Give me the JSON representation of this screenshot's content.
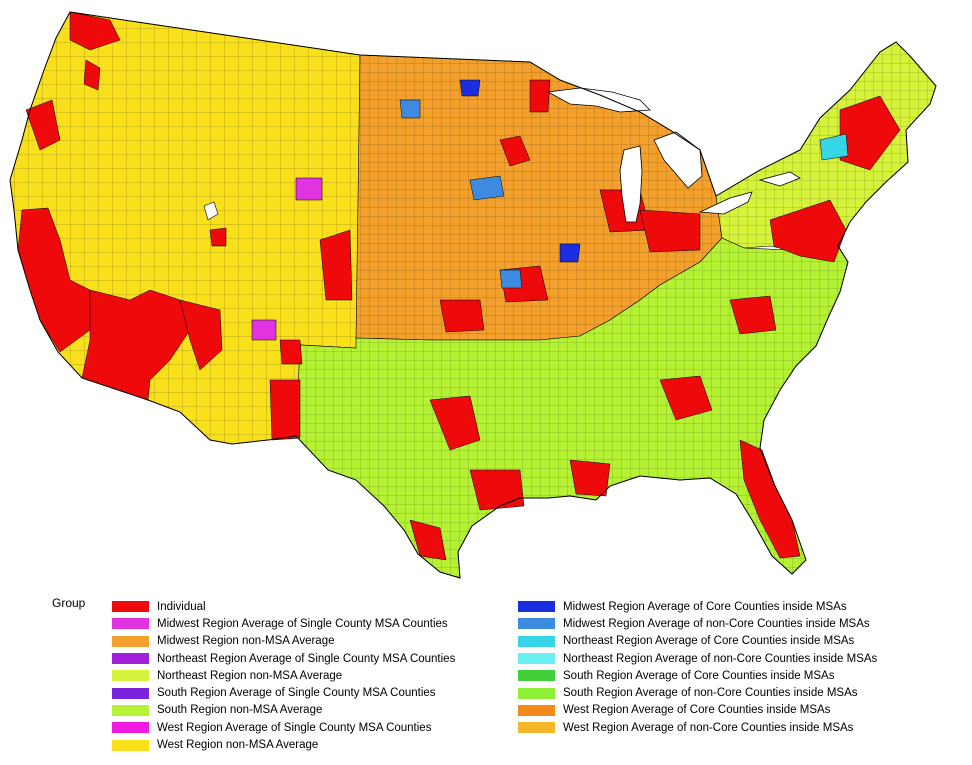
{
  "map": {
    "regions": {
      "west": "#f9e01b",
      "midwest": "#f4a02c",
      "south": "#b5f234",
      "northeast": "#d7f23a"
    },
    "highlight_colors": {
      "individual": "#ee0a0a",
      "midwest_core": "#1a2ee0",
      "midwest_noncore": "#3d8be0",
      "northeast_core": "#36d6e6",
      "south_core": "#42d03a",
      "msa_single": "#e233e2"
    }
  },
  "legend": {
    "title": "Group",
    "left": [
      {
        "label": "Individual",
        "color": "#ee0a0a"
      },
      {
        "label": "Midwest Region Average of Single County MSA Counties",
        "color": "#e233e2"
      },
      {
        "label": "Midwest Region non-MSA Average",
        "color": "#f4a02c"
      },
      {
        "label": "Northeast Region Average of Single County MSA Counties",
        "color": "#a020d8"
      },
      {
        "label": "Northeast Region non-MSA Average",
        "color": "#d7f23a"
      },
      {
        "label": "South Region Average of Single County MSA Counties",
        "color": "#7a22dc"
      },
      {
        "label": "South Region non-MSA Average",
        "color": "#b5f234"
      },
      {
        "label": "West Region Average of Single County MSA Counties",
        "color": "#f01ae0"
      },
      {
        "label": "West Region non-MSA Average",
        "color": "#f9e01b"
      }
    ],
    "right": [
      {
        "label": "Midwest Region Average of Core Counties inside MSAs",
        "color": "#1a2ee0"
      },
      {
        "label": "Midwest Region Average of non-Core Counties inside MSAs",
        "color": "#3d8be0"
      },
      {
        "label": "Northeast Region Average of Core Counties inside MSAs",
        "color": "#36d6e6"
      },
      {
        "label": "Northeast Region Average of non-Core Counties inside MSAs",
        "color": "#6af0f0"
      },
      {
        "label": "South Region Average of Core Counties inside MSAs",
        "color": "#42d03a"
      },
      {
        "label": "South Region Average of non-Core Counties inside MSAs",
        "color": "#8ef034"
      },
      {
        "label": "West Region Average of Core Counties inside MSAs",
        "color": "#f38a1a"
      },
      {
        "label": "West Region Average of non-Core Counties inside MSAs",
        "color": "#f6b62a"
      }
    ]
  }
}
